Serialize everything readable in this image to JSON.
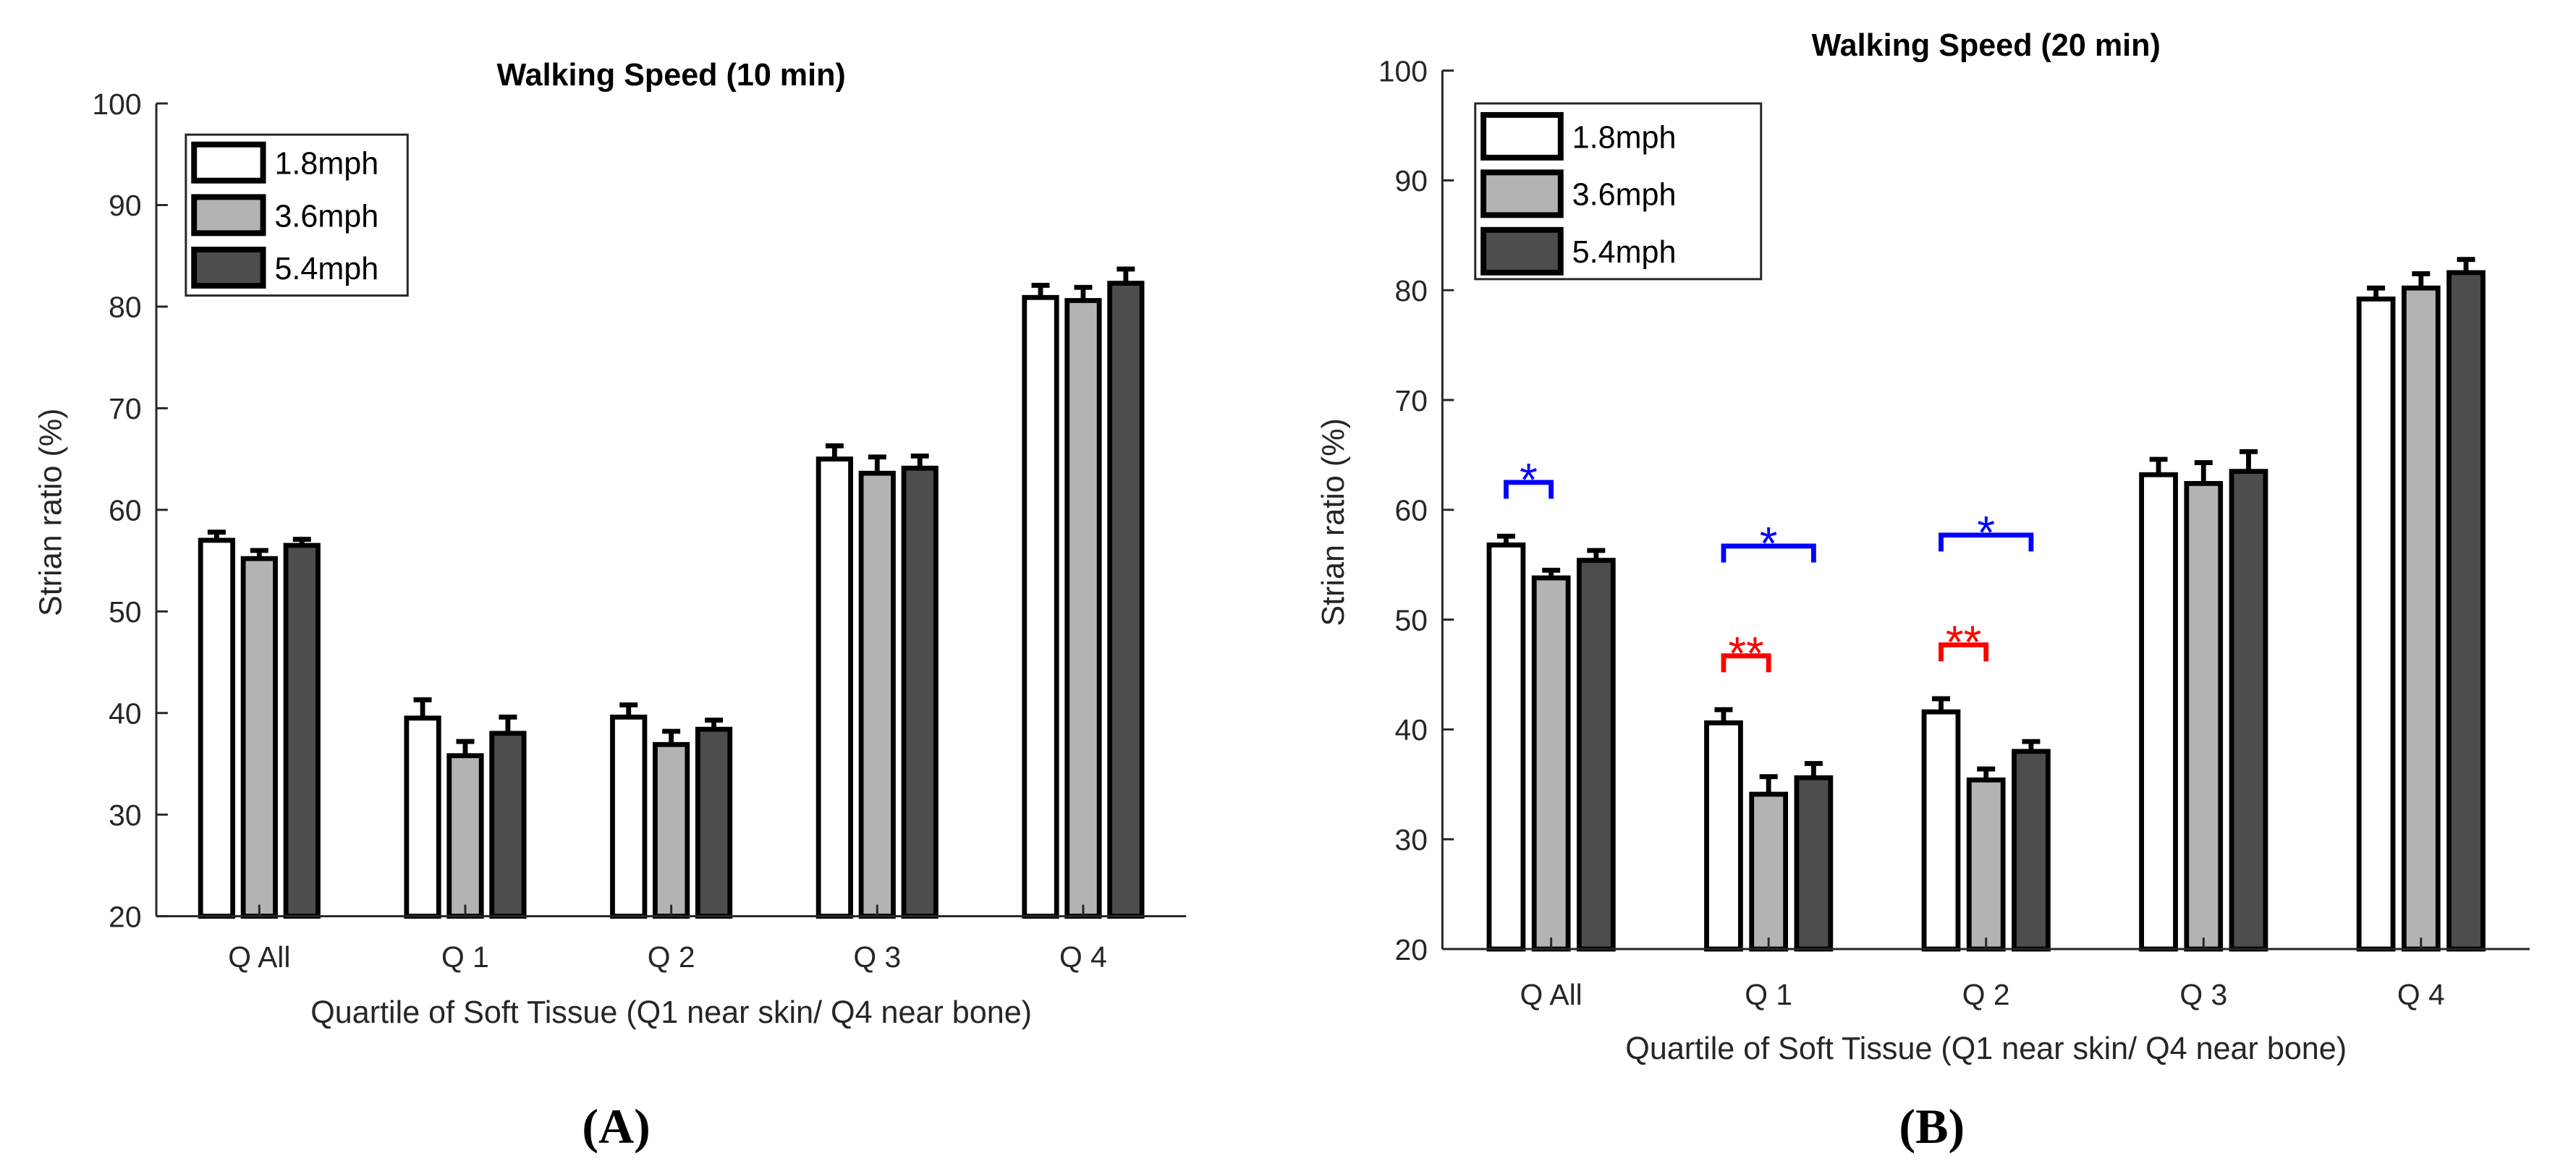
{
  "figure": {
    "panel_labels": [
      "(A)",
      "(B)"
    ]
  },
  "chart_data": [
    {
      "type": "bar",
      "title": "Walking Speed (10 min)",
      "xlabel": "Quartile of Soft Tissue (Q1 near skin/ Q4 near bone)",
      "ylabel": "Strian ratio (%)",
      "ylim": [
        20,
        100
      ],
      "yticks": [
        20,
        30,
        40,
        50,
        60,
        70,
        80,
        90,
        100
      ],
      "grid": false,
      "legend_position": "top-left",
      "categories": [
        "Q All",
        "Q 1",
        "Q 2",
        "Q 3",
        "Q 4"
      ],
      "series": [
        {
          "name": "1.8mph",
          "color": "#ffffff",
          "values": [
            57.0,
            39.5,
            39.6,
            65.0,
            80.9
          ],
          "errors": [
            0.8,
            1.8,
            1.2,
            1.3,
            1.2
          ]
        },
        {
          "name": "3.6mph",
          "color": "#b3b3b3",
          "values": [
            55.2,
            35.8,
            36.9,
            63.6,
            80.6
          ],
          "errors": [
            0.8,
            1.4,
            1.3,
            1.6,
            1.3
          ]
        },
        {
          "name": "5.4mph",
          "color": "#4d4d4d",
          "values": [
            56.5,
            38.0,
            38.4,
            64.1,
            82.3
          ],
          "errors": [
            0.6,
            1.6,
            0.9,
            1.2,
            1.4
          ]
        }
      ],
      "annotations": []
    },
    {
      "type": "bar",
      "title": "Walking Speed (20 min)",
      "xlabel": "Quartile of Soft Tissue (Q1 near skin/ Q4 near bone)",
      "ylabel": "Strian ratio (%)",
      "ylim": [
        20,
        100
      ],
      "yticks": [
        20,
        30,
        40,
        50,
        60,
        70,
        80,
        90,
        100
      ],
      "grid": false,
      "legend_position": "top-left",
      "categories": [
        "Q All",
        "Q 1",
        "Q 2",
        "Q 3",
        "Q 4"
      ],
      "series": [
        {
          "name": "1.8mph",
          "color": "#ffffff",
          "values": [
            56.8,
            40.6,
            41.6,
            63.2,
            79.2
          ],
          "errors": [
            0.8,
            1.2,
            1.2,
            1.4,
            1.0
          ]
        },
        {
          "name": "3.6mph",
          "color": "#b3b3b3",
          "values": [
            53.8,
            34.1,
            35.4,
            62.4,
            80.2
          ],
          "errors": [
            0.7,
            1.6,
            1.0,
            1.9,
            1.3
          ]
        },
        {
          "name": "5.4mph",
          "color": "#4d4d4d",
          "values": [
            55.4,
            35.6,
            38.0,
            63.5,
            81.6
          ],
          "errors": [
            0.9,
            1.3,
            0.9,
            1.8,
            1.2
          ]
        }
      ],
      "annotations": [
        {
          "category": 0,
          "from_series": 0,
          "to_series": 1,
          "y": 62.5,
          "label": "*",
          "color": "#0000ff"
        },
        {
          "category": 1,
          "from_series": 0,
          "to_series": 2,
          "y": 56.7,
          "label": "*",
          "color": "#0000ff"
        },
        {
          "category": 2,
          "from_series": 0,
          "to_series": 2,
          "y": 57.7,
          "label": "*",
          "color": "#0000ff"
        },
        {
          "category": 1,
          "from_series": 0,
          "to_series": 1,
          "y": 46.7,
          "label": "**",
          "color": "#ff0000"
        },
        {
          "category": 2,
          "from_series": 0,
          "to_series": 1,
          "y": 47.7,
          "label": "**",
          "color": "#ff0000"
        }
      ]
    }
  ]
}
